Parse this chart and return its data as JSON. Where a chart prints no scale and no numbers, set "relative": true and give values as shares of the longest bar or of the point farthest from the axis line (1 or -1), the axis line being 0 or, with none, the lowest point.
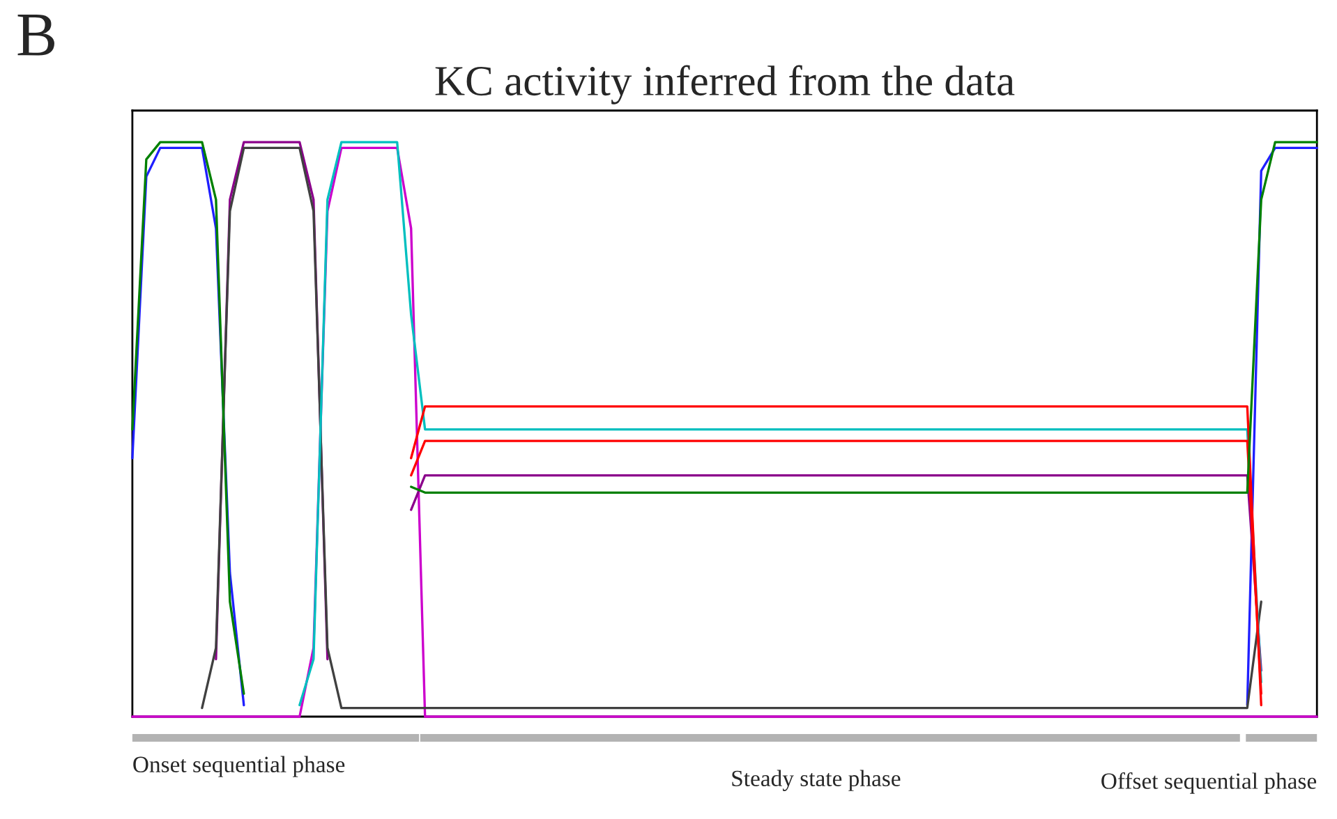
{
  "chart_data": {
    "type": "line",
    "title": "KC activity inferred from the data",
    "relative": true,
    "annotations": [
      "B",
      "Onset sequential phase",
      "Steady state phase",
      "Offset sequential phase"
    ],
    "categories": [
      null,
      null,
      null,
      null,
      null,
      null,
      null,
      null,
      null,
      null,
      null,
      null,
      null,
      null,
      null,
      null,
      null,
      null,
      null,
      null,
      null,
      null,
      null,
      null,
      null,
      null,
      null,
      null,
      null,
      null,
      null,
      null,
      null,
      null,
      null,
      null,
      null,
      null,
      null,
      null,
      null,
      null,
      null,
      null,
      null,
      null,
      null,
      null,
      null,
      null,
      null,
      null,
      null,
      null,
      null,
      null,
      null,
      null,
      null,
      null,
      null,
      null,
      null,
      null,
      null,
      null,
      null,
      null,
      null,
      null,
      null,
      null,
      null,
      null,
      null,
      null,
      null,
      null,
      null,
      null,
      null,
      null,
      null,
      null,
      null,
      null
    ],
    "series": [
      {
        "color": "#cc00cc",
        "values": [
          0,
          0,
          0,
          0,
          0,
          0,
          0,
          0,
          0,
          0,
          0,
          0,
          0,
          0.12,
          0.88,
          0.99,
          0.99,
          0.99,
          0.99,
          0.99,
          0.85,
          0,
          0,
          0,
          0,
          0,
          0,
          0,
          0,
          0,
          0,
          0,
          0,
          0,
          0,
          0,
          0,
          0,
          0,
          0,
          0,
          0,
          0,
          0,
          0,
          0,
          0,
          0,
          0,
          0,
          0,
          0,
          0,
          0,
          0,
          0,
          0,
          0,
          0,
          0,
          0,
          0,
          0,
          0,
          0,
          0,
          0,
          0,
          0,
          0,
          0,
          0,
          0,
          0,
          0,
          0,
          0,
          0,
          0,
          0,
          0,
          0,
          0,
          0,
          0,
          0
        ]
      },
      {
        "color": "#1f1fff",
        "values": [
          0.45,
          0.94,
          0.99,
          0.99,
          0.99,
          0.99,
          0.85,
          0.25,
          0.02,
          null,
          null,
          null,
          null,
          null,
          null,
          null,
          null,
          null,
          null,
          null,
          null,
          null,
          null,
          null,
          null,
          null,
          null,
          null,
          null,
          null,
          null,
          null,
          null,
          null,
          null,
          null,
          null,
          null,
          null,
          null,
          null,
          null,
          null,
          null,
          null,
          null,
          null,
          null,
          null,
          null,
          null,
          null,
          null,
          null,
          null,
          null,
          null,
          null,
          null,
          null,
          null,
          null,
          null,
          null,
          null,
          null,
          null,
          null,
          null,
          null,
          null,
          null,
          null,
          null,
          null,
          null,
          null,
          null,
          null,
          null,
          0.02,
          0.95,
          0.99,
          0.99,
          0.99,
          0.99
        ]
      },
      {
        "color": "#8b008b",
        "values": [
          null,
          null,
          null,
          null,
          null,
          null,
          0.1,
          0.9,
          1,
          1,
          1,
          1,
          1,
          0.9,
          0.1,
          null,
          null,
          null,
          null,
          null,
          0.36,
          0.42,
          0.42,
          0.42,
          0.42,
          0.42,
          0.42,
          0.42,
          0.42,
          0.42,
          0.42,
          0.42,
          0.42,
          0.42,
          0.42,
          0.42,
          0.42,
          0.42,
          0.42,
          0.42,
          0.42,
          0.42,
          0.42,
          0.42,
          0.42,
          0.42,
          0.42,
          0.42,
          0.42,
          0.42,
          0.42,
          0.42,
          0.42,
          0.42,
          0.42,
          0.42,
          0.42,
          0.42,
          0.42,
          0.42,
          0.42,
          0.42,
          0.42,
          0.42,
          0.42,
          0.42,
          0.42,
          0.42,
          0.42,
          0.42,
          0.42,
          0.42,
          0.42,
          0.42,
          0.42,
          0.42,
          0.42,
          0.42,
          0.42,
          0.42,
          0.42,
          0.08,
          null,
          null,
          null,
          null
        ]
      },
      {
        "color": "#404040",
        "values": [
          null,
          null,
          null,
          null,
          null,
          0.015,
          0.12,
          0.88,
          0.99,
          0.99,
          0.99,
          0.99,
          0.99,
          0.88,
          0.12,
          0.015,
          0.015,
          0.015,
          0.015,
          0.015,
          0.015,
          0.015,
          0.015,
          0.015,
          0.015,
          0.015,
          0.015,
          0.015,
          0.015,
          0.015,
          0.015,
          0.015,
          0.015,
          0.015,
          0.015,
          0.015,
          0.015,
          0.015,
          0.015,
          0.015,
          0.015,
          0.015,
          0.015,
          0.015,
          0.015,
          0.015,
          0.015,
          0.015,
          0.015,
          0.015,
          0.015,
          0.015,
          0.015,
          0.015,
          0.015,
          0.015,
          0.015,
          0.015,
          0.015,
          0.015,
          0.015,
          0.015,
          0.015,
          0.015,
          0.015,
          0.015,
          0.015,
          0.015,
          0.015,
          0.015,
          0.015,
          0.015,
          0.015,
          0.015,
          0.015,
          0.015,
          0.015,
          0.015,
          0.015,
          0.015,
          0.015,
          0.2,
          null,
          null,
          null,
          null
        ]
      },
      {
        "color": "#00bfbf",
        "values": [
          null,
          null,
          null,
          null,
          null,
          null,
          null,
          null,
          null,
          null,
          null,
          null,
          0.02,
          0.1,
          0.9,
          1,
          1,
          1,
          1,
          1,
          0.7,
          0.5,
          0.5,
          0.5,
          0.5,
          0.5,
          0.5,
          0.5,
          0.5,
          0.5,
          0.5,
          0.5,
          0.5,
          0.5,
          0.5,
          0.5,
          0.5,
          0.5,
          0.5,
          0.5,
          0.5,
          0.5,
          0.5,
          0.5,
          0.5,
          0.5,
          0.5,
          0.5,
          0.5,
          0.5,
          0.5,
          0.5,
          0.5,
          0.5,
          0.5,
          0.5,
          0.5,
          0.5,
          0.5,
          0.5,
          0.5,
          0.5,
          0.5,
          0.5,
          0.5,
          0.5,
          0.5,
          0.5,
          0.5,
          0.5,
          0.5,
          0.5,
          0.5,
          0.5,
          0.5,
          0.5,
          0.5,
          0.5,
          0.5,
          0.5,
          0.5,
          0.06,
          null,
          null,
          null,
          null
        ]
      },
      {
        "color": "#ff0000",
        "values": [
          null,
          null,
          null,
          null,
          null,
          null,
          null,
          null,
          null,
          null,
          null,
          null,
          null,
          null,
          null,
          null,
          null,
          null,
          null,
          null,
          0.45,
          0.54,
          0.54,
          0.54,
          0.54,
          0.54,
          0.54,
          0.54,
          0.54,
          0.54,
          0.54,
          0.54,
          0.54,
          0.54,
          0.54,
          0.54,
          0.54,
          0.54,
          0.54,
          0.54,
          0.54,
          0.54,
          0.54,
          0.54,
          0.54,
          0.54,
          0.54,
          0.54,
          0.54,
          0.54,
          0.54,
          0.54,
          0.54,
          0.54,
          0.54,
          0.54,
          0.54,
          0.54,
          0.54,
          0.54,
          0.54,
          0.54,
          0.54,
          0.54,
          0.54,
          0.54,
          0.54,
          0.54,
          0.54,
          0.54,
          0.54,
          0.54,
          0.54,
          0.54,
          0.54,
          0.54,
          0.54,
          0.54,
          0.54,
          0.54,
          0.54,
          0.02,
          null,
          null,
          null,
          null
        ]
      },
      {
        "color": "#ff0000",
        "values": [
          null,
          null,
          null,
          null,
          null,
          null,
          null,
          null,
          null,
          null,
          null,
          null,
          null,
          null,
          null,
          null,
          null,
          null,
          null,
          null,
          0.42,
          0.48,
          0.48,
          0.48,
          0.48,
          0.48,
          0.48,
          0.48,
          0.48,
          0.48,
          0.48,
          0.48,
          0.48,
          0.48,
          0.48,
          0.48,
          0.48,
          0.48,
          0.48,
          0.48,
          0.48,
          0.48,
          0.48,
          0.48,
          0.48,
          0.48,
          0.48,
          0.48,
          0.48,
          0.48,
          0.48,
          0.48,
          0.48,
          0.48,
          0.48,
          0.48,
          0.48,
          0.48,
          0.48,
          0.48,
          0.48,
          0.48,
          0.48,
          0.48,
          0.48,
          0.48,
          0.48,
          0.48,
          0.48,
          0.48,
          0.48,
          0.48,
          0.48,
          0.48,
          0.48,
          0.48,
          0.48,
          0.48,
          0.48,
          0.48,
          0.48,
          0.04,
          null,
          null,
          null,
          null
        ]
      },
      {
        "color": "#008000",
        "values": [
          0.5,
          0.97,
          1,
          1,
          1,
          1,
          0.9,
          0.2,
          0.04,
          null,
          null,
          null,
          null,
          null,
          null,
          null,
          null,
          null,
          null,
          null,
          0.4,
          0.39,
          0.39,
          0.39,
          0.39,
          0.39,
          0.39,
          0.39,
          0.39,
          0.39,
          0.39,
          0.39,
          0.39,
          0.39,
          0.39,
          0.39,
          0.39,
          0.39,
          0.39,
          0.39,
          0.39,
          0.39,
          0.39,
          0.39,
          0.39,
          0.39,
          0.39,
          0.39,
          0.39,
          0.39,
          0.39,
          0.39,
          0.39,
          0.39,
          0.39,
          0.39,
          0.39,
          0.39,
          0.39,
          0.39,
          0.39,
          0.39,
          0.39,
          0.39,
          0.39,
          0.39,
          0.39,
          0.39,
          0.39,
          0.39,
          0.39,
          0.39,
          0.39,
          0.39,
          0.39,
          0.39,
          0.39,
          0.39,
          0.39,
          0.39,
          0.39,
          0.9,
          1,
          1,
          1,
          1
        ]
      }
    ]
  }
}
